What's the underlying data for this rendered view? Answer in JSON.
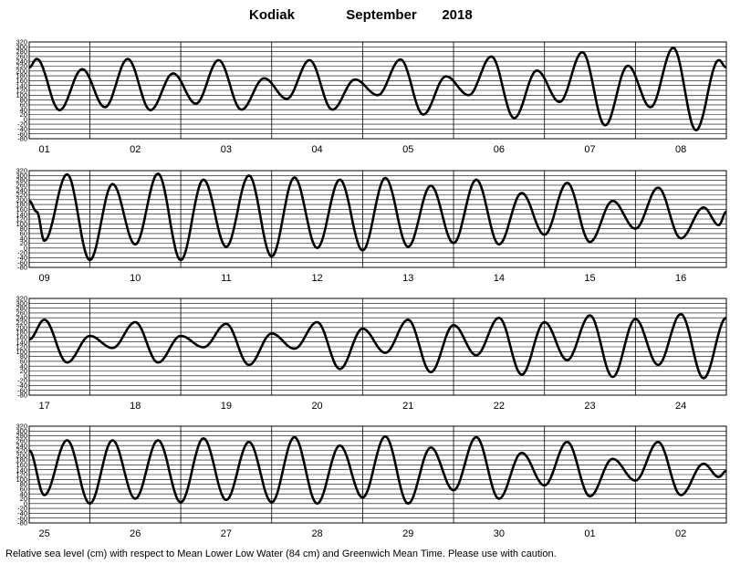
{
  "chart_data": {
    "type": "line",
    "station": "Kodiak",
    "month": "September",
    "year": "2018",
    "ylabel": "Relative sea level (cm)",
    "ylim": [
      -80,
      320
    ],
    "yticks": [
      320,
      300,
      280,
      260,
      240,
      220,
      200,
      180,
      160,
      140,
      120,
      100,
      80,
      60,
      40,
      20,
      0,
      -20,
      -40,
      -60,
      -80
    ],
    "grid": true,
    "panels": [
      {
        "days": [
          "01",
          "02",
          "03",
          "04",
          "05",
          "06",
          "07",
          "08"
        ],
        "extrema": [
          [
            0,
            215
          ],
          [
            2,
            250
          ],
          [
            8,
            38
          ],
          [
            14,
            208
          ],
          [
            20,
            50
          ],
          [
            26,
            250
          ],
          [
            32,
            38
          ],
          [
            38,
            190
          ],
          [
            44,
            65
          ],
          [
            50,
            245
          ],
          [
            56,
            40
          ],
          [
            62,
            170
          ],
          [
            68,
            85
          ],
          [
            74,
            245
          ],
          [
            80,
            40
          ],
          [
            86,
            165
          ],
          [
            92,
            100
          ],
          [
            98,
            248
          ],
          [
            104,
            20
          ],
          [
            110,
            178
          ],
          [
            116,
            100
          ],
          [
            122,
            260
          ],
          [
            128,
            5
          ],
          [
            134,
            202
          ],
          [
            140,
            72
          ],
          [
            146,
            278
          ],
          [
            152,
            -25
          ],
          [
            158,
            222
          ],
          [
            164,
            50
          ],
          [
            170,
            296
          ],
          [
            176,
            -45
          ],
          [
            182,
            245
          ],
          [
            184,
            215
          ]
        ]
      },
      {
        "days": [
          "09",
          "10",
          "11",
          "12",
          "13",
          "14",
          "15",
          "16"
        ],
        "extrema": [
          [
            0,
            195
          ],
          [
            2,
            150
          ],
          [
            4,
            30
          ],
          [
            10,
            305
          ],
          [
            16,
            -50
          ],
          [
            22,
            265
          ],
          [
            28,
            15
          ],
          [
            34,
            308
          ],
          [
            40,
            -50
          ],
          [
            46,
            283
          ],
          [
            52,
            5
          ],
          [
            58,
            300
          ],
          [
            64,
            -35
          ],
          [
            70,
            292
          ],
          [
            76,
            0
          ],
          [
            82,
            283
          ],
          [
            88,
            -10
          ],
          [
            94,
            290
          ],
          [
            100,
            5
          ],
          [
            106,
            258
          ],
          [
            112,
            20
          ],
          [
            118,
            283
          ],
          [
            124,
            15
          ],
          [
            130,
            228
          ],
          [
            136,
            55
          ],
          [
            142,
            270
          ],
          [
            148,
            25
          ],
          [
            154,
            195
          ],
          [
            160,
            80
          ],
          [
            166,
            250
          ],
          [
            172,
            40
          ],
          [
            178,
            168
          ],
          [
            182,
            95
          ],
          [
            184,
            150
          ]
        ]
      },
      {
        "days": [
          "17",
          "18",
          "19",
          "20",
          "21",
          "22",
          "23",
          "24"
        ],
        "extrema": [
          [
            0,
            150
          ],
          [
            4,
            232
          ],
          [
            10,
            55
          ],
          [
            16,
            165
          ],
          [
            22,
            115
          ],
          [
            28,
            222
          ],
          [
            34,
            55
          ],
          [
            40,
            165
          ],
          [
            46,
            118
          ],
          [
            52,
            215
          ],
          [
            58,
            45
          ],
          [
            64,
            175
          ],
          [
            70,
            112
          ],
          [
            76,
            222
          ],
          [
            82,
            28
          ],
          [
            88,
            195
          ],
          [
            94,
            95
          ],
          [
            100,
            232
          ],
          [
            106,
            15
          ],
          [
            112,
            210
          ],
          [
            118,
            85
          ],
          [
            124,
            240
          ],
          [
            130,
            5
          ],
          [
            136,
            222
          ],
          [
            142,
            65
          ],
          [
            148,
            250
          ],
          [
            154,
            -5
          ],
          [
            160,
            235
          ],
          [
            166,
            45
          ],
          [
            172,
            255
          ],
          [
            178,
            -10
          ],
          [
            184,
            240
          ]
        ]
      },
      {
        "days": [
          "25",
          "26",
          "27",
          "28",
          "29",
          "30",
          "01",
          "02"
        ],
        "extrema": [
          [
            0,
            220
          ],
          [
            4,
            35
          ],
          [
            10,
            262
          ],
          [
            16,
            0
          ],
          [
            22,
            262
          ],
          [
            28,
            20
          ],
          [
            34,
            262
          ],
          [
            40,
            5
          ],
          [
            46,
            270
          ],
          [
            52,
            15
          ],
          [
            58,
            255
          ],
          [
            64,
            5
          ],
          [
            70,
            275
          ],
          [
            76,
            0
          ],
          [
            82,
            240
          ],
          [
            88,
            25
          ],
          [
            94,
            278
          ],
          [
            100,
            0
          ],
          [
            106,
            232
          ],
          [
            112,
            55
          ],
          [
            118,
            275
          ],
          [
            124,
            20
          ],
          [
            130,
            210
          ],
          [
            136,
            75
          ],
          [
            142,
            255
          ],
          [
            148,
            30
          ],
          [
            154,
            185
          ],
          [
            160,
            95
          ],
          [
            166,
            255
          ],
          [
            172,
            35
          ],
          [
            178,
            165
          ],
          [
            182,
            110
          ],
          [
            184,
            135
          ]
        ]
      }
    ]
  },
  "footer": "Relative sea level (cm) with respect to Mean Lower Low Water (84 cm) and Greenwich Mean Time. Please use with caution."
}
